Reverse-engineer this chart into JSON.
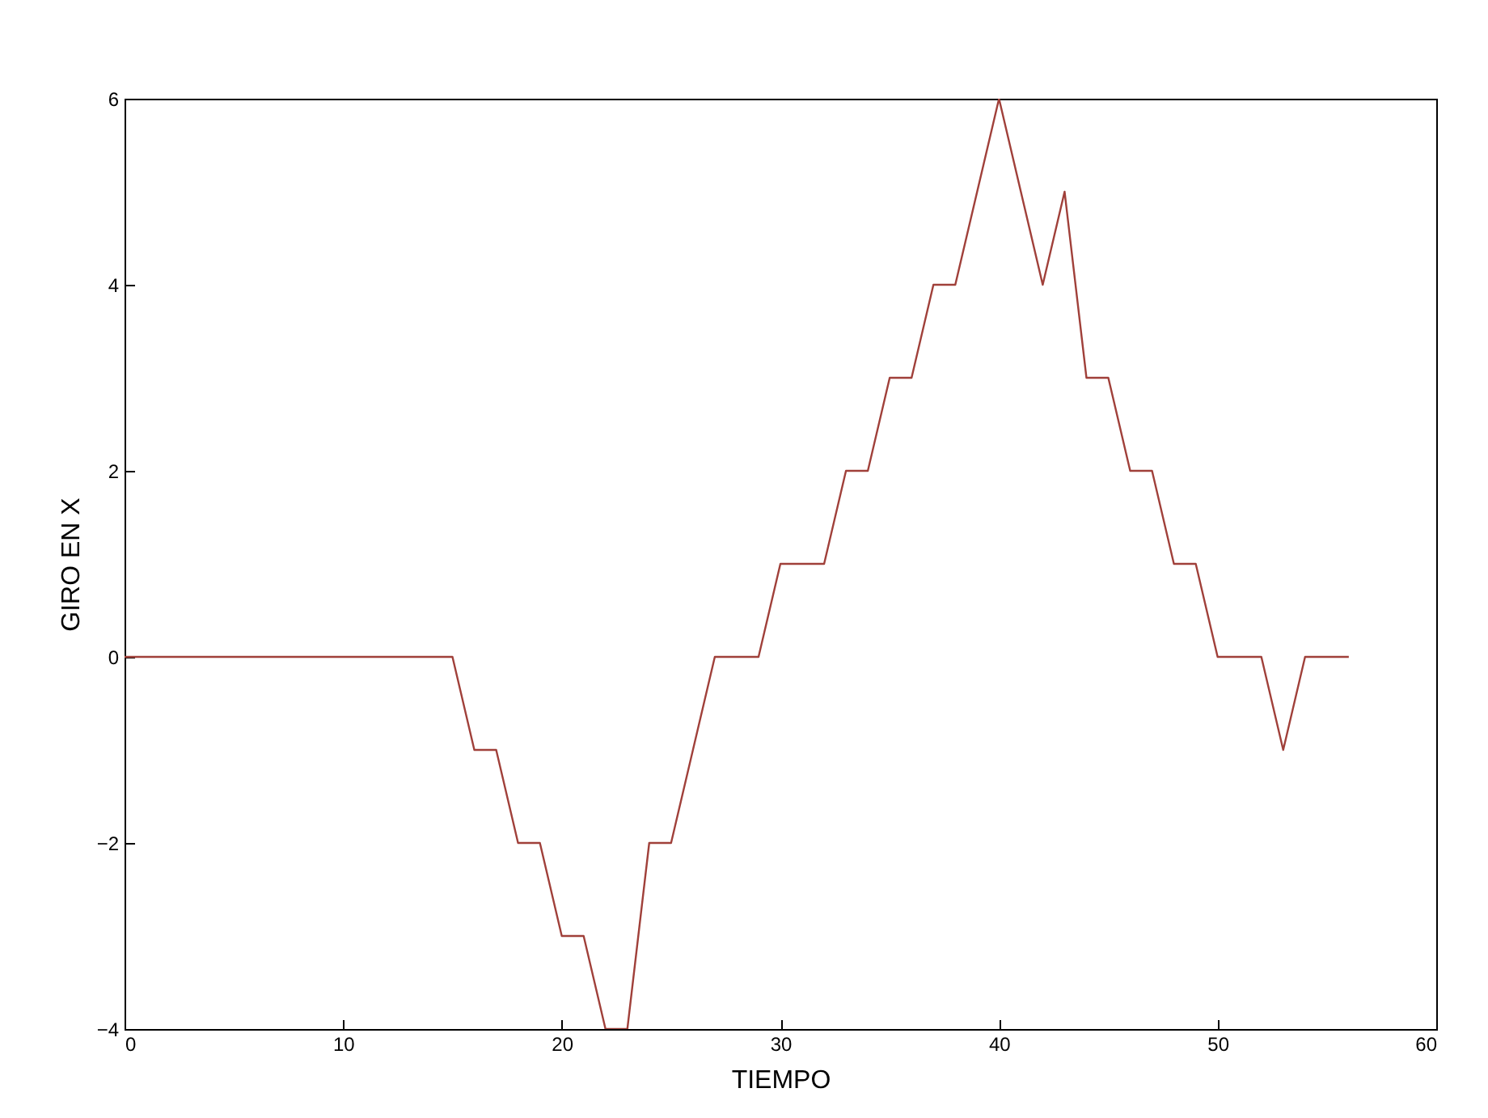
{
  "chart_data": {
    "type": "line",
    "xlabel": "TIEMPO",
    "ylabel": "GIRO EN X",
    "x": [
      0,
      15,
      16,
      17,
      18,
      19,
      20,
      21,
      22,
      23,
      24,
      25,
      26,
      27,
      28,
      29,
      30,
      31,
      32,
      33,
      34,
      35,
      36,
      37,
      38,
      40,
      42,
      43,
      44,
      45,
      46,
      47,
      48,
      49,
      50,
      51,
      52,
      53,
      54,
      55,
      56
    ],
    "series": [
      {
        "color": "#a0403a",
        "values": [
          0,
          0,
          -1,
          -1,
          -2,
          -2,
          -3,
          -3,
          -4,
          -4,
          -2,
          -2,
          -1,
          0,
          0,
          0,
          1,
          1,
          1,
          2,
          2,
          3,
          3,
          4,
          4,
          6,
          4,
          5,
          3,
          3,
          2,
          2,
          1,
          1,
          0,
          0,
          0,
          -1,
          0,
          0,
          0
        ]
      }
    ],
    "xlim": [
      0,
      60
    ],
    "xticks": [
      0,
      10,
      20,
      30,
      40,
      50,
      60
    ],
    "ylim": [
      -4,
      6
    ],
    "yticks": [
      -4,
      -2,
      0,
      2,
      4,
      6
    ],
    "grid": false,
    "marker": "none",
    "line_style": "solid"
  }
}
